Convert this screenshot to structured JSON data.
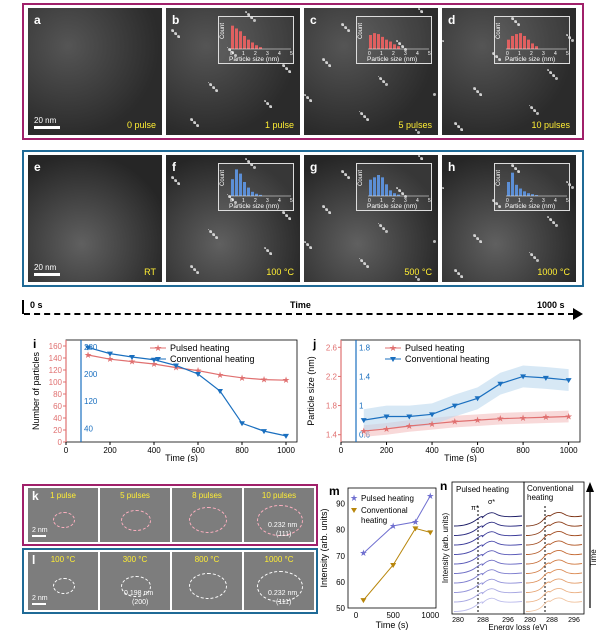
{
  "top_panels": [
    {
      "label": "a",
      "caption": "0 pulse",
      "scale": "20 nm"
    },
    {
      "label": "b",
      "caption": "1 pulse"
    },
    {
      "label": "c",
      "caption": "5 pulses"
    },
    {
      "label": "d",
      "caption": "10 pulses"
    }
  ],
  "mid_panels": [
    {
      "label": "e",
      "caption": "RT",
      "scale": "20 nm"
    },
    {
      "label": "f",
      "caption": "100 °C"
    },
    {
      "label": "g",
      "caption": "500 °C"
    },
    {
      "label": "h",
      "caption": "1000 °C"
    }
  ],
  "inset_labels": {
    "ylabel": "Count",
    "xlabel": "Particle size (nm)"
  },
  "insets_top": {
    "yticks": [
      "0",
      "10",
      "20",
      "30"
    ],
    "xticks": [
      "0",
      "1",
      "2",
      "3",
      "4",
      "5"
    ]
  },
  "insets_mid": {
    "yticks_f": [
      "0",
      "20",
      "40",
      "60",
      "80",
      "100"
    ],
    "yticks_g": [
      "0",
      "20",
      "40",
      "60"
    ],
    "yticks_h": [
      "0",
      "10",
      "20",
      "30"
    ],
    "xticks": [
      "0",
      "1",
      "2",
      "3",
      "4",
      "5"
    ]
  },
  "timeline": {
    "start": "0 s",
    "middle": "Time",
    "end": "1000 s"
  },
  "chart_data": [
    {
      "type": "line",
      "panel": "i",
      "xlabel": "Time (s)",
      "ylabel": "Number of particles",
      "x": [
        100,
        200,
        300,
        400,
        500,
        600,
        700,
        800,
        900,
        1000
      ],
      "series": [
        {
          "name": "Pulsed heating",
          "color": "#e07070",
          "values": [
            145,
            138,
            134,
            130,
            124,
            119,
            112,
            107,
            104,
            103
          ]
        },
        {
          "name": "Conventional heating",
          "color": "#1a6fbf",
          "values": [
            278,
            260,
            250,
            242,
            225,
            200,
            150,
            55,
            32,
            18
          ]
        }
      ],
      "left_ylim": [
        0,
        170
      ],
      "left_yticks": [
        0,
        20,
        40,
        60,
        80,
        100,
        120,
        140,
        160
      ],
      "right_ylim": [
        0,
        300
      ],
      "right_yticks": [
        40,
        120,
        200,
        280
      ],
      "xticks": [
        0,
        200,
        400,
        600,
        800,
        1000
      ]
    },
    {
      "type": "line",
      "panel": "j",
      "xlabel": "Time (s)",
      "ylabel": "Particle size (nm)",
      "x": [
        100,
        200,
        300,
        400,
        500,
        600,
        700,
        800,
        900,
        1000
      ],
      "series": [
        {
          "name": "Pulsed heating",
          "color": "#e07070",
          "values": [
            1.45,
            1.48,
            1.52,
            1.55,
            1.58,
            1.6,
            1.62,
            1.63,
            1.64,
            1.65
          ]
        },
        {
          "name": "Conventional heating",
          "color": "#1a6fbf",
          "values": [
            0.8,
            0.85,
            0.85,
            0.88,
            1.0,
            1.1,
            1.3,
            1.4,
            1.38,
            1.35
          ]
        }
      ],
      "left_ylim": [
        1.3,
        2.7
      ],
      "left_yticks": [
        1.4,
        1.8,
        2.2,
        2.6
      ],
      "right_ylim": [
        0.5,
        1.9
      ],
      "right_yticks": [
        0.6,
        1.0,
        1.4,
        1.8
      ],
      "xticks": [
        0,
        200,
        400,
        600,
        800,
        1000
      ]
    },
    {
      "type": "line",
      "panel": "m",
      "xlabel": "Time (s)",
      "ylabel": "Intensity (arb. units)",
      "series": [
        {
          "name": "Pulsed heating",
          "color": "#7070d0",
          "x": [
            100,
            500,
            800,
            1000
          ],
          "values": [
            71,
            81.5,
            83,
            93
          ]
        },
        {
          "name": "Conventional heating",
          "color": "#b8860b",
          "x": [
            100,
            500,
            800,
            1000
          ],
          "values": [
            53,
            66.5,
            80.5,
            79
          ]
        }
      ],
      "ylim": [
        50,
        96
      ],
      "yticks": [
        50,
        60,
        70,
        80,
        90
      ],
      "xticks": [
        0,
        500,
        1000
      ]
    }
  ],
  "panel_n": {
    "label": "n",
    "left_title": "Pulsed heating",
    "right_title": "Conventional heating",
    "ylabel": "Intensity (arb. units)",
    "xlabel": "Energy loss (eV)",
    "pi": "π*",
    "sigma": "σ*",
    "xticks": [
      "280",
      "288",
      "296"
    ],
    "time": "Time"
  },
  "hrtem_k": [
    {
      "cap": "1 pulse"
    },
    {
      "cap": "5 pulses"
    },
    {
      "cap": "8 pulses"
    },
    {
      "cap": "10 pulses",
      "d": "0.232 nm",
      "hkl": "(111)"
    }
  ],
  "hrtem_l": [
    {
      "cap": "100 °C"
    },
    {
      "cap": "300 °C",
      "d": "0.198 nm",
      "hkl": "(200)"
    },
    {
      "cap": "800 °C"
    },
    {
      "cap": "1000 °C",
      "d": "0.232 nm",
      "hkl": "(111)"
    }
  ],
  "labels": {
    "k": "k",
    "l": "l",
    "m": "m",
    "i": "i",
    "j": "j",
    "scale_2nm": "2 nm"
  }
}
